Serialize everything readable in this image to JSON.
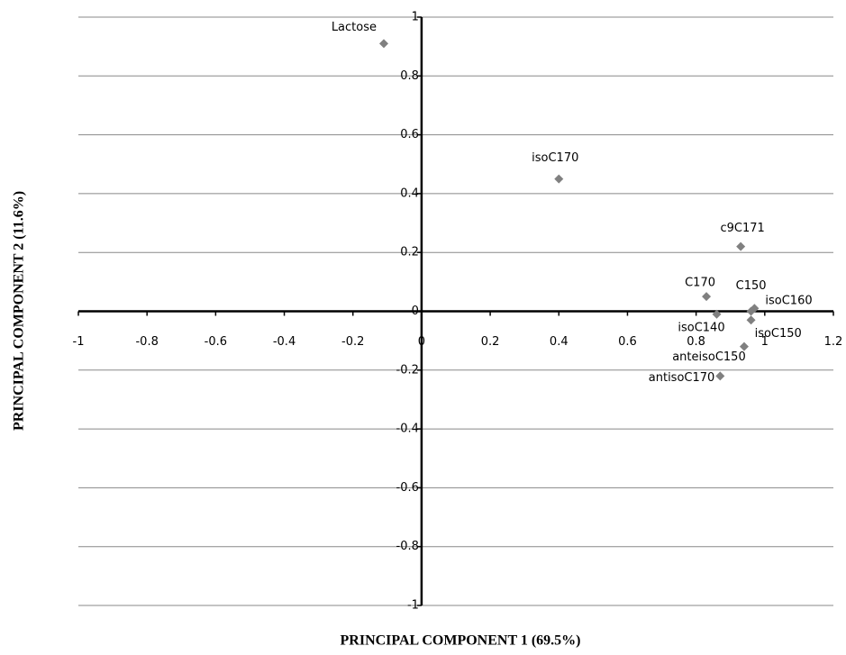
{
  "chart_data": {
    "type": "scatter",
    "x_label": "PRINCIPAL COMPONENT 1 (69.5%)",
    "y_label": "PRINCIPAL COMPONENT 2 (11.6%)",
    "series": [
      {
        "color": "#808080",
        "labels": [
          "Lactose",
          "isoC170",
          "c9C171",
          "C170",
          "C150",
          "isoC160",
          "isoC150",
          "isoC140",
          "anteisoC150",
          "antisoC170"
        ],
        "x": [
          -0.11,
          0.4,
          0.93,
          0.83,
          0.96,
          0.97,
          0.96,
          0.86,
          0.94,
          0.87
        ],
        "values": [
          0.91,
          0.45,
          0.22,
          0.05,
          0.0,
          0.01,
          -0.03,
          -0.01,
          -0.12,
          -0.22
        ]
      }
    ],
    "xlim": [
      -1,
      1.2
    ],
    "xticks": [
      -1,
      -0.8,
      -0.6,
      -0.4,
      -0.2,
      0,
      0.2,
      0.4,
      0.6,
      0.8,
      1,
      1.2
    ],
    "ylim": [
      -1,
      1
    ],
    "yticks": [
      -1,
      -0.8,
      -0.6,
      -0.4,
      -0.2,
      0,
      0.2,
      0.4,
      0.6,
      0.8,
      1
    ],
    "grid": true
  }
}
